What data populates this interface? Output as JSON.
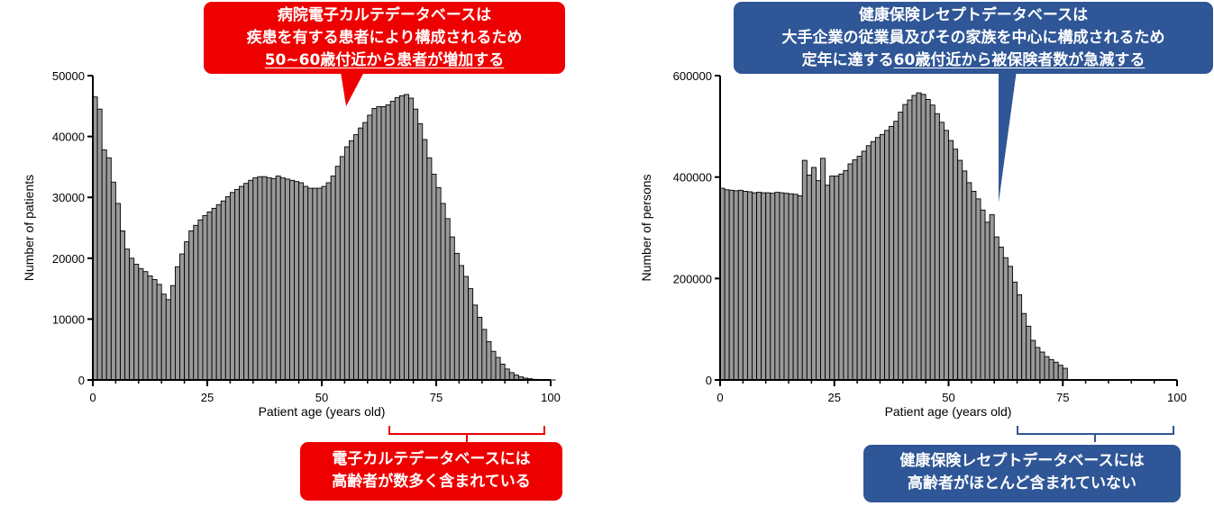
{
  "colors": {
    "red_callout": "#ee0000",
    "blue_callout": "#2f5696",
    "bar_fill": "#999999",
    "bar_stroke": "#000000"
  },
  "chart_data": [
    {
      "type": "bar",
      "xlabel": "Patient age (years old)",
      "ylabel": "Number of patients",
      "xlim": [
        0,
        100
      ],
      "ylim": [
        0,
        50000
      ],
      "xticks": [
        0,
        25,
        50,
        75,
        100
      ],
      "yticks": [
        0,
        10000,
        20000,
        30000,
        40000,
        50000
      ],
      "grid": false,
      "x": [
        0,
        1,
        2,
        3,
        4,
        5,
        6,
        7,
        8,
        9,
        10,
        11,
        12,
        13,
        14,
        15,
        16,
        17,
        18,
        19,
        20,
        21,
        22,
        23,
        24,
        25,
        26,
        27,
        28,
        29,
        30,
        31,
        32,
        33,
        34,
        35,
        36,
        37,
        38,
        39,
        40,
        41,
        42,
        43,
        44,
        45,
        46,
        47,
        48,
        49,
        50,
        51,
        52,
        53,
        54,
        55,
        56,
        57,
        58,
        59,
        60,
        61,
        62,
        63,
        64,
        65,
        66,
        67,
        68,
        69,
        70,
        71,
        72,
        73,
        74,
        75,
        76,
        77,
        78,
        79,
        80,
        81,
        82,
        83,
        84,
        85,
        86,
        87,
        88,
        89,
        90,
        91,
        92,
        93,
        94,
        95,
        96,
        97,
        98,
        99,
        100
      ],
      "values": [
        46500,
        44500,
        37800,
        36500,
        32500,
        29000,
        24500,
        21500,
        20000,
        19000,
        18300,
        17800,
        17100,
        16500,
        15700,
        14100,
        13200,
        15500,
        18600,
        20700,
        22700,
        24500,
        25400,
        26300,
        27000,
        27600,
        28200,
        28800,
        29400,
        30100,
        30800,
        31300,
        31800,
        32300,
        32800,
        33200,
        33400,
        33400,
        33200,
        33100,
        33500,
        33200,
        33000,
        32800,
        32600,
        32400,
        31800,
        31500,
        31500,
        31500,
        31800,
        32400,
        33500,
        35100,
        36700,
        38300,
        39300,
        40300,
        41400,
        42300,
        43500,
        44600,
        44900,
        44900,
        45200,
        45800,
        46400,
        46700,
        46900,
        46300,
        44500,
        42100,
        39500,
        36500,
        33800,
        31600,
        29000,
        26500,
        23500,
        20800,
        18800,
        17000,
        15000,
        12300,
        10300,
        8300,
        6300,
        4700,
        3700,
        2600,
        1800,
        1200,
        800,
        500,
        300,
        200,
        100,
        50,
        20,
        10,
        5
      ]
    },
    {
      "type": "bar",
      "xlabel": "Patient age (years old)",
      "ylabel": "Number of persons",
      "xlim": [
        0,
        100
      ],
      "ylim": [
        0,
        600000
      ],
      "xticks": [
        0,
        25,
        50,
        75,
        100
      ],
      "yticks": [
        0,
        200000,
        400000,
        600000
      ],
      "grid": false,
      "x": [
        0,
        1,
        2,
        3,
        4,
        5,
        6,
        7,
        8,
        9,
        10,
        11,
        12,
        13,
        14,
        15,
        16,
        17,
        18,
        19,
        20,
        21,
        22,
        23,
        24,
        25,
        26,
        27,
        28,
        29,
        30,
        31,
        32,
        33,
        34,
        35,
        36,
        37,
        38,
        39,
        40,
        41,
        42,
        43,
        44,
        45,
        46,
        47,
        48,
        49,
        50,
        51,
        52,
        53,
        54,
        55,
        56,
        57,
        58,
        59,
        60,
        61,
        62,
        63,
        64,
        65,
        66,
        67,
        68,
        69,
        70,
        71,
        72,
        73,
        74,
        75,
        76,
        77,
        78,
        79,
        80,
        81,
        82,
        83,
        84,
        85,
        86,
        87,
        88,
        89,
        90,
        91,
        92,
        93,
        94,
        95,
        96,
        97,
        98,
        99,
        100
      ],
      "values": [
        378000,
        375000,
        374000,
        373000,
        374000,
        372000,
        371000,
        369000,
        370000,
        369000,
        369000,
        368000,
        370000,
        369000,
        368000,
        367000,
        366000,
        363000,
        433000,
        404000,
        419000,
        393000,
        437000,
        384000,
        402000,
        402000,
        406000,
        413000,
        426000,
        434000,
        441000,
        451000,
        462000,
        470000,
        478000,
        484000,
        492000,
        500000,
        510000,
        528000,
        543000,
        552000,
        561000,
        566000,
        563000,
        553000,
        542000,
        525000,
        508000,
        492000,
        472000,
        455000,
        433000,
        412000,
        389000,
        372000,
        357000,
        335000,
        311000,
        326000,
        282000,
        262000,
        241000,
        224000,
        193000,
        168000,
        131000,
        106000,
        78000,
        64000,
        55000,
        46000,
        40000,
        35000,
        29000,
        23000,
        0,
        0,
        0,
        0,
        0,
        0,
        0,
        0,
        0,
        0,
        0,
        0,
        0,
        0,
        0,
        0,
        0,
        0,
        0,
        0,
        0,
        0,
        0,
        0,
        0
      ]
    }
  ],
  "callouts": {
    "ehr_top": [
      "病院電子カルテデータベースは",
      "疾患を有する患者により構成されるため",
      "50~60歳付近から患者が増加する"
    ],
    "ehr_bottom": [
      "電子カルテデータベースには",
      "高齢者が数多く含まれている"
    ],
    "claims_top": [
      "健康保険レセプトデータベースは",
      "大手企業の従業員及びその家族を中心に構成されるため"
    ],
    "claims_top_line3_prefix": "定年に達する",
    "claims_top_line3_underlined": "60歳付近から被保険者数が急減する",
    "claims_bottom": [
      "健康保険レセプトデータベースには",
      "高齢者がほとんど含まれていない"
    ]
  }
}
